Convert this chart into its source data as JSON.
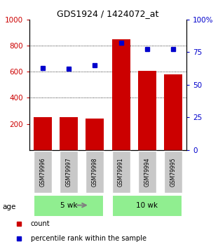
{
  "title": "GDS1924 / 1424072_at",
  "samples": [
    "GSM79996",
    "GSM79997",
    "GSM79998",
    "GSM79991",
    "GSM79994",
    "GSM79995"
  ],
  "bar_values": [
    250,
    250,
    240,
    850,
    605,
    580
  ],
  "percentile_values": [
    63,
    62,
    65,
    82,
    77,
    77
  ],
  "bar_color": "#cc0000",
  "percentile_color": "#0000cc",
  "left_ylim": [
    0,
    1000
  ],
  "right_ylim": [
    0,
    100
  ],
  "left_yticks": [
    200,
    400,
    600,
    800,
    1000
  ],
  "right_yticks": [
    0,
    25,
    50,
    75,
    100
  ],
  "right_yticklabels": [
    "0",
    "25",
    "50",
    "75",
    "100%"
  ],
  "left_yticklabels": [
    "200",
    "400",
    "600",
    "800",
    "1000"
  ],
  "groups": [
    {
      "label": "5 wk",
      "indices": [
        0,
        1,
        2
      ]
    },
    {
      "label": "10 wk",
      "indices": [
        3,
        4,
        5
      ]
    }
  ],
  "group_color": "#90ee90",
  "age_label": "age",
  "legend_items": [
    {
      "label": "count",
      "color": "#cc0000"
    },
    {
      "label": "percentile rank within the sample",
      "color": "#0000cc"
    }
  ],
  "background_color": "#ffffff",
  "sample_box_color": "#c8c8c8",
  "figsize": [
    3.11,
    3.45
  ],
  "dpi": 100
}
